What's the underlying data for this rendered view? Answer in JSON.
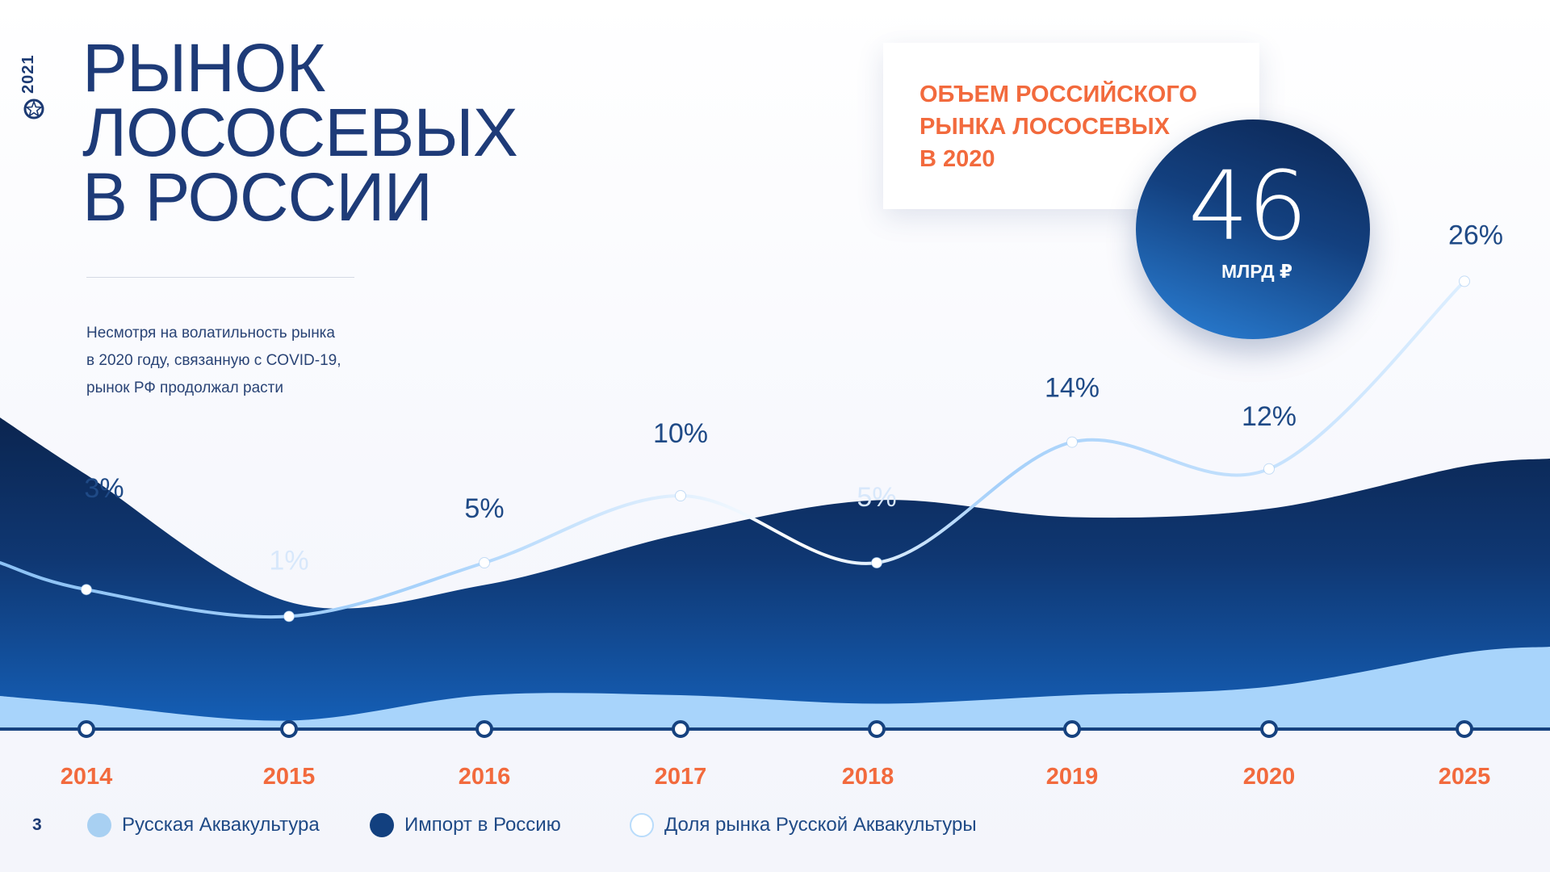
{
  "side": {
    "year": "2021"
  },
  "title": {
    "line1": "РЫНОК",
    "line2": "ЛОСОСЕВЫХ",
    "line3": "В РОССИИ"
  },
  "intro": {
    "line1": "Несмотря на волатильность рынка",
    "line2": "в 2020 году, связанную с COVID-19,",
    "line3": "рынок РФ продолжал расти"
  },
  "callout": {
    "line1": "ОБЪЕМ РОССИЙСКОГО",
    "line2": "РЫНКА ЛОСОСЕВЫХ",
    "line3": "В 2020",
    "value": "46",
    "unit": "МЛРД ₽"
  },
  "page_number": "3",
  "colors": {
    "accent": "#f26a3d",
    "primary": "#1e3b78",
    "aquaculture": "#a8d4fb",
    "import": "#12407f",
    "share": "#ffffff"
  },
  "chart_data": {
    "type": "area",
    "title": "",
    "xlabel": "",
    "ylabel": "",
    "categories": [
      "2014",
      "2015",
      "2016",
      "2017",
      "2018",
      "2019",
      "2020",
      "2025"
    ],
    "series": [
      {
        "name": "Русская Аквакультура",
        "values": [
          3,
          1,
          4,
          4,
          3,
          4,
          5,
          9
        ]
      },
      {
        "name": "Импорт в Россию",
        "values": [
          27,
          14,
          13,
          19,
          24,
          21,
          21,
          22
        ]
      },
      {
        "name": "Доля рынка Русской Аквакультуры",
        "unit": "%",
        "values": [
          3,
          1,
          5,
          10,
          5,
          14,
          12,
          26
        ],
        "labels": [
          "3%",
          "1%",
          "5%",
          "10%",
          "5%",
          "14%",
          "12%",
          "26%"
        ]
      }
    ],
    "legend": {
      "aquaculture": "Русская Аквакультура",
      "import": "Импорт в Россию",
      "share": "Доля рынка Русской Аквакультуры"
    }
  }
}
